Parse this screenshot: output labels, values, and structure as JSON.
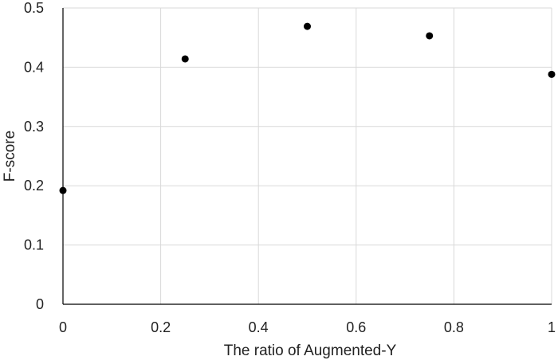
{
  "chart_data": {
    "type": "scatter",
    "title": "",
    "xlabel": "The ratio of Augmented-Y",
    "ylabel": "F-score",
    "xlim": [
      0,
      1
    ],
    "ylim": [
      0,
      0.5
    ],
    "x_ticks": [
      "0",
      "0.2",
      "0.4",
      "0.6",
      "0.8",
      "1"
    ],
    "y_ticks": [
      "0",
      "0.1",
      "0.2",
      "0.3",
      "0.4",
      "0.5"
    ],
    "grid": true,
    "legend": "none",
    "series": [
      {
        "color": "#000000",
        "points": [
          {
            "x": 0,
            "y": 0.192
          },
          {
            "x": 0.25,
            "y": 0.414
          },
          {
            "x": 0.5,
            "y": 0.469
          },
          {
            "x": 0.75,
            "y": 0.453
          },
          {
            "x": 1,
            "y": 0.388
          }
        ]
      }
    ]
  },
  "colors": {
    "grid": "#d9d9d9",
    "axis": "#000000",
    "marker": "#000000",
    "text": "#222222"
  }
}
